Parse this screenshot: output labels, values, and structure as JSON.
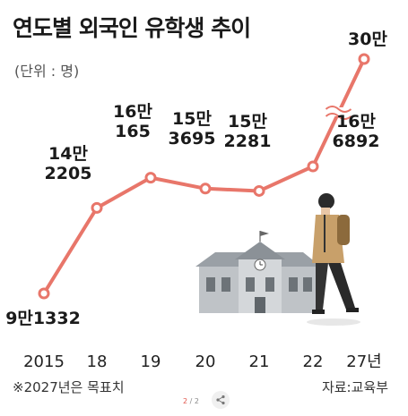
{
  "title": "연도별 외국인 유학생 추이",
  "unit": "(단위 : 명)",
  "note": "※2027년은 목표치",
  "source": "자료:교육부",
  "pager": {
    "current": "2",
    "sep": "/",
    "total": "2"
  },
  "colors": {
    "line": "#e8766a",
    "accent": "#e0544a"
  },
  "chart_data": {
    "type": "line",
    "categories": [
      "2015",
      "18",
      "19",
      "20",
      "21",
      "22",
      "27년"
    ],
    "values": [
      91332,
      142205,
      160165,
      153695,
      152281,
      166892,
      300000
    ],
    "labels": [
      [
        "9만1332"
      ],
      [
        "14만",
        "2205"
      ],
      [
        "16만",
        "165"
      ],
      [
        "15만",
        "3695"
      ],
      [
        "15만",
        "2281"
      ],
      [
        "16만",
        "6892"
      ],
      [
        "30만"
      ]
    ],
    "axis_break": true
  }
}
